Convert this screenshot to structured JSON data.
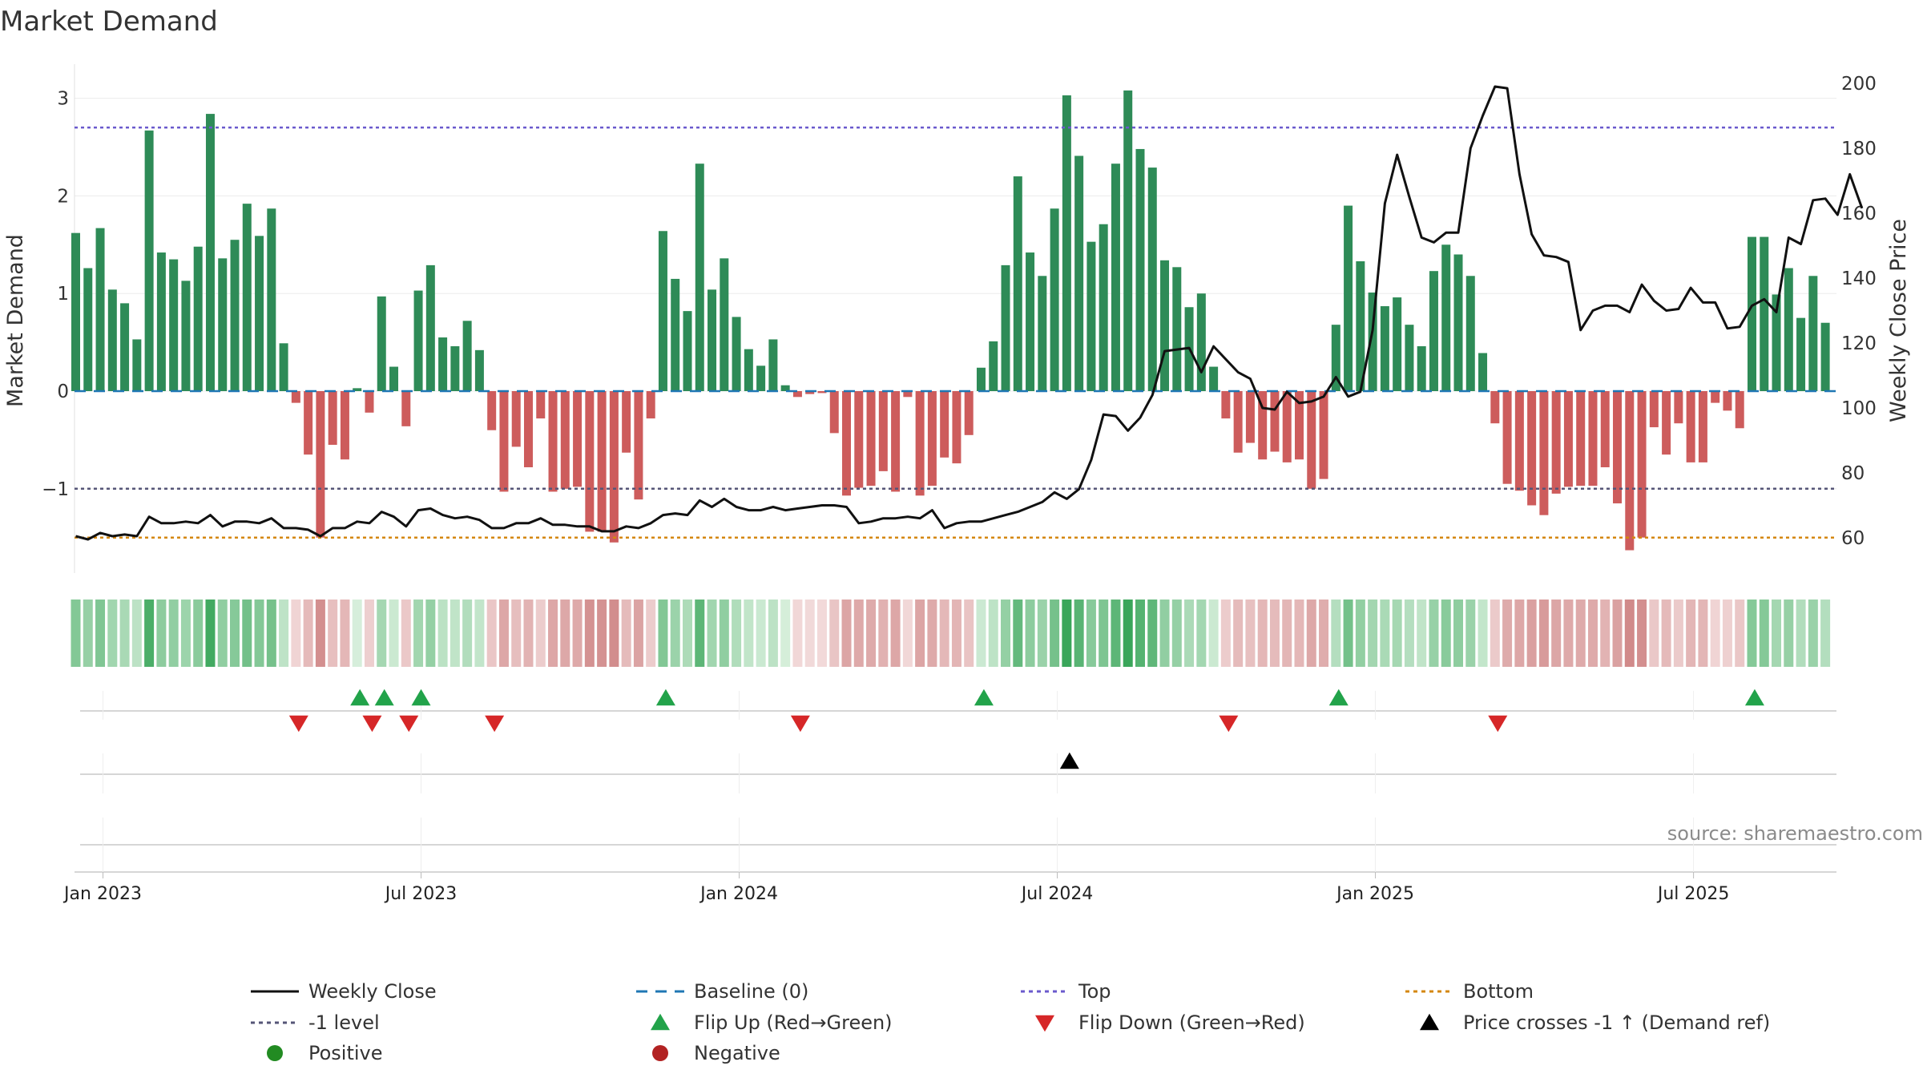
{
  "chart_data": {
    "type": "bar",
    "title": "Market Demand",
    "ylabel": "Market Demand",
    "y2label": "Weekly Close Price",
    "ylim": [
      -1.9,
      3.5
    ],
    "y2lim": [
      45,
      205
    ],
    "yticks": [
      3,
      2,
      1,
      0,
      -1
    ],
    "ytick_labels": [
      "3",
      "2",
      "1",
      "0",
      "−1"
    ],
    "y2ticks": [
      200,
      180,
      160,
      140,
      120,
      100,
      80,
      60
    ],
    "xticks": [
      "Jan 2023",
      "Jul 2023",
      "Jan 2024",
      "Jul 2024",
      "Jan 2025",
      "Jul 2025"
    ],
    "xtick_weeks": [
      0,
      26,
      52,
      78,
      104,
      130
    ],
    "start_week": -2,
    "ref_lines": {
      "top": 2.7,
      "minus_one": -1.0,
      "bottom": -1.5,
      "baseline": 0
    },
    "demand": [
      1.62,
      1.26,
      1.67,
      1.04,
      0.9,
      0.53,
      2.67,
      1.42,
      1.35,
      1.13,
      1.48,
      2.84,
      1.36,
      1.55,
      1.92,
      1.59,
      1.87,
      0.49,
      -0.12,
      -0.65,
      -1.5,
      -0.55,
      -0.7,
      0.03,
      -0.22,
      0.97,
      0.25,
      -0.36,
      1.03,
      1.29,
      0.55,
      0.46,
      0.72,
      0.42,
      -0.4,
      -1.03,
      -0.57,
      -0.78,
      -0.28,
      -1.03,
      -1.0,
      -0.98,
      -1.44,
      -1.44,
      -1.55,
      -0.63,
      -1.11,
      -0.28,
      1.64,
      1.15,
      0.82,
      2.33,
      1.04,
      1.36,
      0.76,
      0.43,
      0.26,
      0.53,
      0.06,
      -0.06,
      -0.03,
      -0.02,
      -0.43,
      -1.07,
      -0.99,
      -0.97,
      -0.82,
      -1.03,
      -0.06,
      -1.07,
      -0.97,
      -0.68,
      -0.74,
      -0.45,
      0.24,
      0.51,
      1.29,
      2.2,
      1.42,
      1.18,
      1.87,
      3.03,
      2.41,
      1.53,
      1.71,
      2.33,
      3.08,
      2.48,
      2.29,
      1.34,
      1.27,
      0.86,
      1.0,
      0.25,
      -0.28,
      -0.63,
      -0.53,
      -0.7,
      -0.62,
      -0.73,
      -0.7,
      -1.0,
      -0.9,
      0.68,
      1.9,
      1.33,
      1.01,
      0.87,
      0.96,
      0.68,
      0.46,
      1.23,
      1.5,
      1.4,
      1.18,
      0.39,
      -0.33,
      -0.95,
      -1.02,
      -1.17,
      -1.27,
      -1.05,
      -0.98,
      -0.97,
      -0.97,
      -0.78,
      -1.15,
      -1.63,
      -1.5,
      -0.37,
      -0.65,
      -0.33,
      -0.73,
      -0.73,
      -0.12,
      -0.2,
      -0.38,
      1.58,
      1.58,
      0.99,
      1.26,
      0.75,
      1.18,
      0.7
    ],
    "price": [
      60.5,
      59.5,
      61.5,
      60.5,
      61,
      60.5,
      66.5,
      64.5,
      64.5,
      65,
      64.5,
      67,
      63.5,
      65,
      65,
      64.5,
      66,
      63,
      63,
      62.5,
      60.5,
      63,
      63,
      65,
      64.5,
      68,
      66.5,
      63.5,
      68.5,
      69,
      67,
      66,
      66.5,
      65.5,
      63,
      63,
      64.5,
      64.5,
      66,
      64,
      64,
      63.5,
      63.5,
      62,
      62,
      63.5,
      63,
      64.5,
      67,
      67.5,
      67,
      71.5,
      69.5,
      72,
      69.5,
      68.5,
      68.5,
      69.5,
      68.5,
      69,
      69.5,
      70,
      70,
      69.5,
      64.5,
      65,
      66,
      66,
      66.5,
      66,
      68.5,
      63,
      64.5,
      65,
      65,
      66,
      67,
      68,
      69.5,
      71,
      74,
      72,
      75,
      84,
      98,
      97.5,
      93,
      97,
      104,
      117.5,
      118,
      118.5,
      111,
      119,
      115,
      111,
      109,
      100,
      99.5,
      105,
      101.5,
      102,
      103.5,
      109.5,
      103.5,
      105,
      124,
      163,
      178,
      165,
      152.5,
      151,
      154,
      154,
      180,
      190,
      199,
      198.5,
      172,
      153.5,
      147,
      146.5,
      145,
      124,
      130,
      131.5,
      131.5,
      129.5,
      138,
      133,
      130,
      130.5,
      137,
      132.5,
      132.5,
      124.5,
      125,
      131.5,
      133.5,
      129.5,
      152.5,
      150.5,
      164,
      164.5,
      159.5,
      172,
      161.5
    ],
    "flip_up_weeks": [
      21,
      23,
      26,
      46,
      72,
      101,
      135
    ],
    "flip_down_weeks": [
      16,
      22,
      25,
      32,
      57,
      92,
      114
    ],
    "cross_weeks": [
      79
    ],
    "colors": {
      "positive_bar": "#2e8b57",
      "negative_bar": "#cd5c5c",
      "price_line": "#111111",
      "baseline": "#1f77b4",
      "top": "#6a5acd",
      "minus_one": "#555577",
      "bottom": "#d4870f",
      "flip_up": "#22a34a",
      "flip_down": "#d62728",
      "cross": "#000000",
      "positive_dot": "#228b22",
      "negative_dot": "#b22222"
    },
    "legend_position": "bottom",
    "source": "source: sharemaestro.com",
    "legend": [
      {
        "key": "close",
        "label": "Weekly Close",
        "symbol": "line-solid",
        "color": "#111111"
      },
      {
        "key": "baseline",
        "label": "Baseline (0)",
        "symbol": "line-dashed",
        "color": "#1f77b4"
      },
      {
        "key": "top",
        "label": "Top",
        "symbol": "line-dotted",
        "color": "#6a5acd"
      },
      {
        "key": "bottom",
        "label": "Bottom",
        "symbol": "line-dotted",
        "color": "#d4870f"
      },
      {
        "key": "minus1",
        "label": "-1 level",
        "symbol": "line-dotted",
        "color": "#555577"
      },
      {
        "key": "flipup",
        "label": "Flip Up (Red→Green)",
        "symbol": "triangle-up",
        "color": "#22a34a"
      },
      {
        "key": "flipdown",
        "label": "Flip Down (Green→Red)",
        "symbol": "triangle-down",
        "color": "#d62728"
      },
      {
        "key": "cross",
        "label": "Price crosses -1 ↑ (Demand ref)",
        "symbol": "triangle-up",
        "color": "#000000"
      },
      {
        "key": "positive",
        "label": "Positive",
        "symbol": "dot",
        "color": "#228b22"
      },
      {
        "key": "negative",
        "label": "Negative",
        "symbol": "dot",
        "color": "#b22222"
      }
    ]
  }
}
